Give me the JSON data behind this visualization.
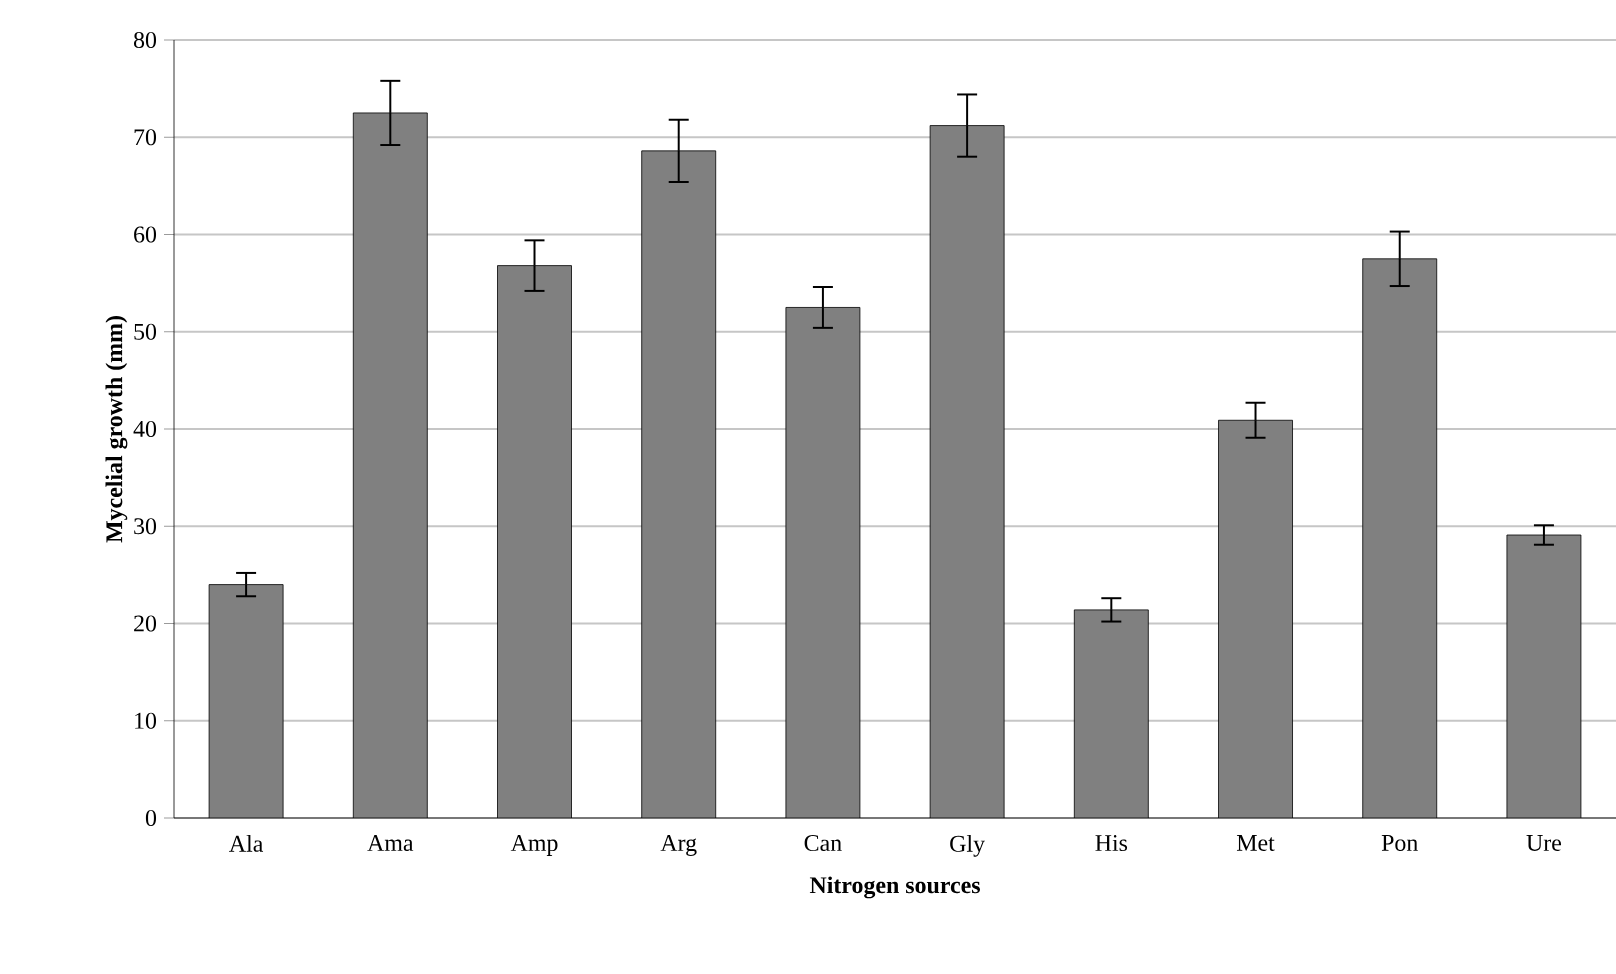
{
  "chart_data": {
    "type": "bar",
    "xlabel": "Nitrogen sources",
    "ylabel": "Mycelial growth (mm)",
    "categories": [
      "Ala",
      "Ama",
      "Amp",
      "Arg",
      "Can",
      "Gly",
      "His",
      "Met",
      "Pon",
      "Ure"
    ],
    "values": [
      24.0,
      72.5,
      56.8,
      68.6,
      52.5,
      71.2,
      21.4,
      40.9,
      57.5,
      29.1
    ],
    "errors": [
      1.2,
      3.3,
      2.6,
      3.2,
      2.1,
      3.2,
      1.2,
      1.8,
      2.8,
      1.0
    ],
    "color": "#808080",
    "ylim": [
      0,
      80
    ],
    "yticks": [
      0,
      10,
      20,
      30,
      40,
      50,
      60,
      70,
      80
    ],
    "grid": "y",
    "legend": false
  }
}
